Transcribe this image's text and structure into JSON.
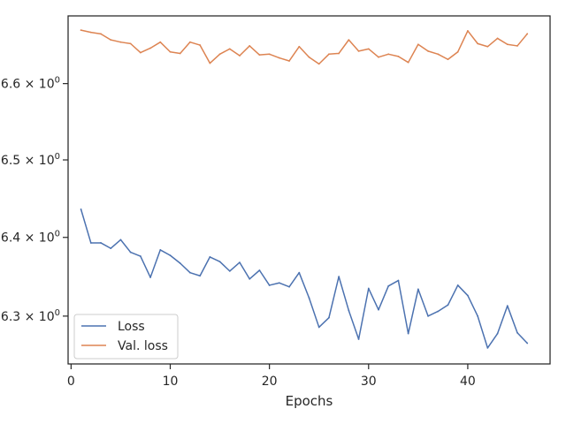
{
  "chart_data": {
    "type": "line",
    "title": "",
    "xlabel": "Epochs",
    "ylabel": "",
    "yscale": "log",
    "xlim": [
      -0.3,
      48.3
    ],
    "ylim": [
      6.24,
      6.69
    ],
    "grid": false,
    "legend_position": "lower-left",
    "x_ticks": [
      {
        "value": 0,
        "label": "0"
      },
      {
        "value": 10,
        "label": "10"
      },
      {
        "value": 20,
        "label": "20"
      },
      {
        "value": 30,
        "label": "30"
      },
      {
        "value": 40,
        "label": "40"
      }
    ],
    "y_ticks": [
      {
        "value": 6.3,
        "mantissa": "6.3",
        "label": "6.3 × 10⁰"
      },
      {
        "value": 6.4,
        "mantissa": "6.4",
        "label": "6.4 × 10⁰"
      },
      {
        "value": 6.5,
        "mantissa": "6.5",
        "label": "6.5 × 10⁰"
      },
      {
        "value": 6.6,
        "mantissa": "6.6",
        "label": "6.6 × 10⁰"
      }
    ],
    "x": [
      1,
      2,
      3,
      4,
      5,
      6,
      7,
      8,
      9,
      10,
      11,
      12,
      13,
      14,
      15,
      16,
      17,
      18,
      19,
      20,
      21,
      22,
      23,
      24,
      25,
      26,
      27,
      28,
      29,
      30,
      31,
      32,
      33,
      34,
      35,
      36,
      37,
      38,
      39,
      40,
      41,
      42,
      43,
      44,
      45,
      46
    ],
    "series": [
      {
        "name": "Loss",
        "color": "#4c72b0",
        "values": [
          6.436,
          6.393,
          6.393,
          6.386,
          6.397,
          6.381,
          6.376,
          6.349,
          6.384,
          6.377,
          6.367,
          6.355,
          6.351,
          6.375,
          6.369,
          6.357,
          6.368,
          6.347,
          6.358,
          6.339,
          6.342,
          6.337,
          6.355,
          6.323,
          6.286,
          6.298,
          6.35,
          6.307,
          6.271,
          6.335,
          6.308,
          6.338,
          6.345,
          6.278,
          6.334,
          6.3,
          6.306,
          6.314,
          6.339,
          6.326,
          6.3,
          6.26,
          6.278,
          6.313,
          6.279,
          6.266
        ]
      },
      {
        "name": "Val. loss",
        "color": "#dd8452",
        "values": [
          6.671,
          6.668,
          6.666,
          6.658,
          6.655,
          6.653,
          6.641,
          6.647,
          6.655,
          6.642,
          6.64,
          6.655,
          6.651,
          6.627,
          6.639,
          6.646,
          6.637,
          6.65,
          6.638,
          6.639,
          6.634,
          6.63,
          6.649,
          6.635,
          6.626,
          6.639,
          6.64,
          6.658,
          6.643,
          6.646,
          6.635,
          6.639,
          6.636,
          6.628,
          6.652,
          6.643,
          6.639,
          6.632,
          6.642,
          6.67,
          6.653,
          6.649,
          6.66,
          6.652,
          6.65,
          6.666
        ]
      }
    ]
  }
}
